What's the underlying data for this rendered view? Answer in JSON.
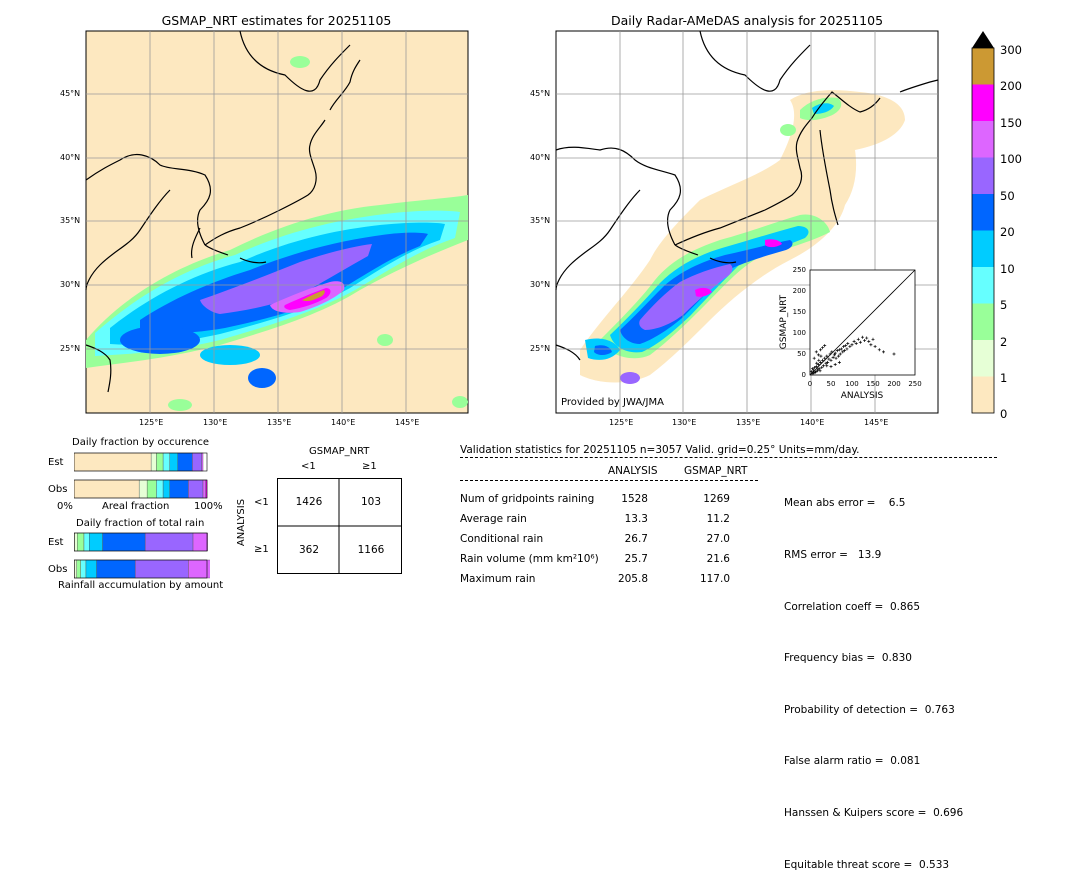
{
  "map_left": {
    "title": "GSMAP_NRT estimates for 20251105",
    "lat_labels": [
      "45°N",
      "40°N",
      "35°N",
      "30°N",
      "25°N"
    ],
    "lon_labels": [
      "125°E",
      "130°E",
      "135°E",
      "140°E",
      "145°E"
    ]
  },
  "map_right": {
    "title": "Daily Radar-AMeDAS analysis for 20251105",
    "lat_labels": [
      "45°N",
      "40°N",
      "35°N",
      "30°N",
      "25°N"
    ],
    "lon_labels": [
      "125°E",
      "130°E",
      "135°E",
      "140°E",
      "145°E"
    ],
    "credit": "Provided by JWA/JMA"
  },
  "colorbar": {
    "ticks": [
      "0",
      "1",
      "2",
      "5",
      "10",
      "20",
      "50",
      "100",
      "150",
      "200",
      "300"
    ],
    "colors": [
      "#fde8c0",
      "#e6ffd6",
      "#99ff99",
      "#66ffff",
      "#00ccff",
      "#0066ff",
      "#9966ff",
      "#dd66ff",
      "#ff00ff",
      "#cc9933"
    ]
  },
  "scatter": {
    "xlabel": "ANALYSIS",
    "ylabel": "GSMAP_NRT",
    "ticks": [
      "0",
      "50",
      "100",
      "150",
      "200",
      "250"
    ]
  },
  "occurrence": {
    "title": "Daily fraction by occurence",
    "row_est": "Est",
    "row_obs": "Obs",
    "axis_left": "0%",
    "axis_mid": "Areal fraction",
    "axis_right": "100%"
  },
  "total_rain": {
    "title": "Daily fraction of total rain",
    "row_est": "Est",
    "row_obs": "Obs",
    "footer": "Rainfall accumulation by amount"
  },
  "contingency": {
    "title": "GSMAP_NRT",
    "col_lt": "<1",
    "col_ge": "≥1",
    "row_label": "ANALYSIS",
    "row_lt": "<1",
    "row_ge": "≥1",
    "a": "1426",
    "b": "103",
    "c": "362",
    "d": "1166"
  },
  "validation": {
    "header": "Validation statistics for 20251105  n=3057 Valid. grid=0.25° Units=mm/day.",
    "col_analysis": "ANALYSIS",
    "col_gsmap": "GSMAP_NRT",
    "rows": [
      {
        "label": "Num of gridpoints raining",
        "analysis": "1528",
        "gsmap": "1269"
      },
      {
        "label": "Average rain",
        "analysis": "13.3",
        "gsmap": "11.2"
      },
      {
        "label": "Conditional rain",
        "analysis": "26.7",
        "gsmap": "27.0"
      },
      {
        "label": "Rain volume (mm km²10⁶)",
        "analysis": "25.7",
        "gsmap": "21.6"
      },
      {
        "label": "Maximum rain",
        "analysis": "205.8",
        "gsmap": "117.0"
      }
    ],
    "scores": [
      "Mean abs error =    6.5",
      "RMS error =   13.9",
      "Correlation coeff =  0.865",
      "Frequency bias =  0.830",
      "Probability of detection =  0.763",
      "False alarm ratio =  0.081",
      "Hanssen & Kuipers score =  0.696",
      "Equitable threat score =  0.533"
    ]
  },
  "chart_data": [
    {
      "type": "heatmap",
      "title": "GSMAP_NRT estimates for 20251105",
      "x_range": [
        120,
        150
      ],
      "y_range": [
        20,
        50
      ],
      "units": "mm/day"
    },
    {
      "type": "heatmap",
      "title": "Daily Radar-AMeDAS analysis for 20251105",
      "x_range": [
        120,
        150
      ],
      "y_range": [
        20,
        50
      ],
      "units": "mm/day"
    },
    {
      "type": "scatter",
      "xlabel": "ANALYSIS",
      "ylabel": "GSMAP_NRT",
      "xlim": [
        0,
        250
      ],
      "ylim": [
        0,
        250
      ],
      "points": [
        [
          5,
          3
        ],
        [
          8,
          12
        ],
        [
          12,
          6
        ],
        [
          15,
          20
        ],
        [
          18,
          10
        ],
        [
          20,
          25
        ],
        [
          22,
          15
        ],
        [
          25,
          30
        ],
        [
          28,
          18
        ],
        [
          30,
          35
        ],
        [
          32,
          22
        ],
        [
          35,
          40
        ],
        [
          38,
          28
        ],
        [
          40,
          45
        ],
        [
          42,
          30
        ],
        [
          45,
          38
        ],
        [
          48,
          50
        ],
        [
          50,
          35
        ],
        [
          52,
          55
        ],
        [
          55,
          42
        ],
        [
          58,
          48
        ],
        [
          60,
          52
        ],
        [
          62,
          40
        ],
        [
          65,
          58
        ],
        [
          68,
          45
        ],
        [
          70,
          60
        ],
        [
          72,
          50
        ],
        [
          75,
          62
        ],
        [
          78,
          55
        ],
        [
          80,
          68
        ],
        [
          82,
          58
        ],
        [
          85,
          70
        ],
        [
          88,
          62
        ],
        [
          90,
          75
        ],
        [
          95,
          68
        ],
        [
          100,
          72
        ],
        [
          105,
          80
        ],
        [
          110,
          75
        ],
        [
          115,
          85
        ],
        [
          120,
          78
        ],
        [
          125,
          90
        ],
        [
          130,
          82
        ],
        [
          135,
          88
        ],
        [
          140,
          80
        ],
        [
          145,
          72
        ],
        [
          150,
          85
        ],
        [
          155,
          68
        ],
        [
          165,
          60
        ],
        [
          175,
          55
        ],
        [
          200,
          50
        ],
        [
          10,
          40
        ],
        [
          15,
          55
        ],
        [
          20,
          48
        ],
        [
          25,
          60
        ],
        [
          30,
          65
        ],
        [
          35,
          70
        ],
        [
          40,
          22
        ],
        [
          50,
          20
        ],
        [
          60,
          25
        ],
        [
          70,
          30
        ],
        [
          3,
          8
        ],
        [
          6,
          15
        ],
        [
          9,
          5
        ],
        [
          11,
          18
        ],
        [
          14,
          8
        ],
        [
          16,
          28
        ],
        [
          19,
          14
        ],
        [
          21,
          35
        ],
        [
          24,
          10
        ],
        [
          26,
          45
        ]
      ]
    },
    {
      "type": "bar",
      "title": "Daily fraction by occurence",
      "categories": [
        "Est",
        "Obs"
      ],
      "series": [
        {
          "values": [
            0.58,
            0.49
          ]
        },
        {
          "values": [
            0.04,
            0.06
          ]
        },
        {
          "values": [
            0.05,
            0.07
          ]
        },
        {
          "values": [
            0.05,
            0.05
          ]
        },
        {
          "values": [
            0.06,
            0.05
          ]
        },
        {
          "values": [
            0.11,
            0.14
          ]
        },
        {
          "values": [
            0.07,
            0.11
          ]
        },
        {
          "values": [
            0.01,
            0.02
          ]
        },
        {
          "values": [
            0.0,
            0.01
          ]
        },
        {
          "values": [
            0.0,
            0.0
          ]
        }
      ],
      "xlim": [
        0,
        1
      ]
    },
    {
      "type": "bar",
      "title": "Daily fraction of total rain",
      "categories": [
        "Est",
        "Obs"
      ],
      "series": [
        {
          "values": [
            0.005,
            0.005
          ]
        },
        {
          "values": [
            0.02,
            0.015
          ]
        },
        {
          "values": [
            0.05,
            0.03
          ]
        },
        {
          "values": [
            0.04,
            0.04
          ]
        },
        {
          "values": [
            0.1,
            0.08
          ]
        },
        {
          "values": [
            0.32,
            0.29
          ]
        },
        {
          "values": [
            0.36,
            0.4
          ]
        },
        {
          "values": [
            0.11,
            0.17
          ]
        },
        {
          "values": [
            0.0,
            0.06
          ]
        },
        {
          "values": [
            0.0,
            0.0
          ]
        }
      ],
      "xlim": [
        0,
        1
      ]
    }
  ]
}
